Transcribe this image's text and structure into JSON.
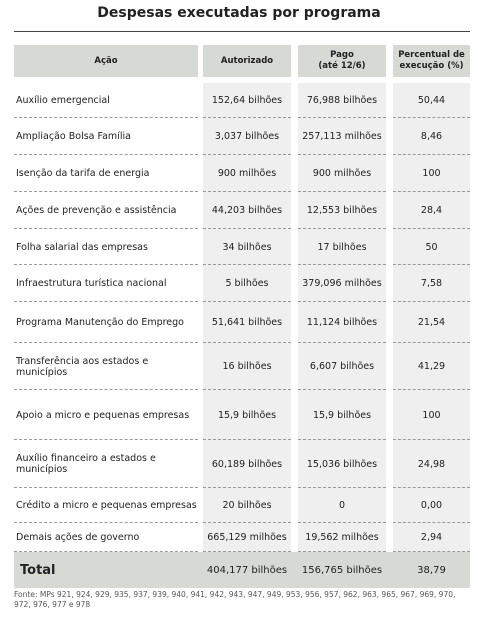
{
  "title": "Despesas executadas por programa",
  "table": {
    "header": [
      "Ação",
      "Autorizado",
      "Pago\n(até 12/6)",
      "Percentual de\nexecução (%)"
    ],
    "rows": [
      [
        "Auxílio emergencial",
        "152,64 bilhões",
        "76,988 bilhões",
        "50,44"
      ],
      [
        "Ampliação Bolsa Família",
        "3,037 bilhões",
        "257,113 milhões",
        "8,46"
      ],
      [
        "Isenção da tarifa de energia",
        "900 milhões",
        "900 milhões",
        "100"
      ],
      [
        "Ações de prevenção e assistência",
        "44,203 bilhões",
        "12,553 bilhões",
        "28,4"
      ],
      [
        "Folha salarial das empresas",
        "34 bilhões",
        "17 bilhões",
        "50"
      ],
      [
        "Infraestrutura turística nacional",
        "5 bilhões",
        "379,096 milhões",
        "7,58"
      ],
      [
        "Programa Manutenção do Emprego",
        "51,641 bilhões",
        "11,124 bilhões",
        "21,54"
      ],
      [
        "Transferência aos estados e municípios",
        "16 bilhões",
        "6,607 bilhões",
        "41,29"
      ],
      [
        "Apoio a micro e pequenas empresas",
        "15,9 bilhões",
        "15,9 bilhões",
        "100"
      ],
      [
        "Auxílio financeiro a estados e municípios",
        "60,189 bilhões",
        "15,036 bilhões",
        "24,98"
      ],
      [
        "Crédito a micro e pequenas empresas",
        "20 bilhões",
        "0",
        "0,00"
      ],
      [
        "Demais ações de governo",
        "665,129 milhões",
        "19,562 milhões",
        "2,94"
      ]
    ],
    "total": [
      "Total",
      "404,177 bilhões",
      "156,765 bilhões",
      "38,79"
    ]
  },
  "source": "Fonte: MPs 921, 924, 929, 935, 937, 939, 940, 941, 942, 943, 947, 949, 953, 956, 957, 962, 963, 965, 967, 969, 970, 972, 976, 977 e 978"
}
